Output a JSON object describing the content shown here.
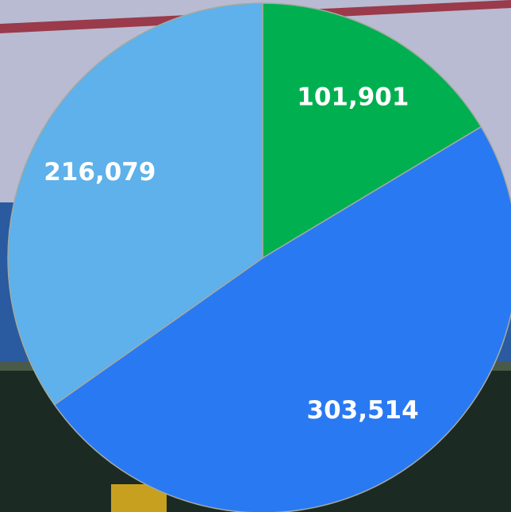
{
  "chart_data": {
    "type": "pie",
    "categories": [
      null,
      null,
      null
    ],
    "values": [
      101901,
      303514,
      216079
    ],
    "value_labels": [
      "101,901",
      "303,514",
      "216,079"
    ],
    "colors": [
      "#00b050",
      "#2979f2",
      "#5eb1ea"
    ]
  }
}
